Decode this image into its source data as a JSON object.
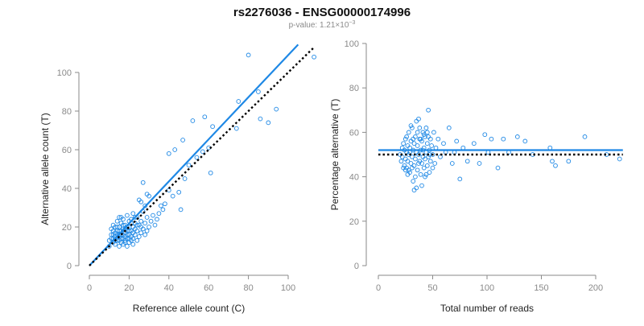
{
  "title": "rs2276036 - ENSG00000174996",
  "subtitle": {
    "prefix": "p-value: 1.21×10",
    "exponent": "−3"
  },
  "colors": {
    "accent": "#1e88e5",
    "reference": "#000000",
    "axis": "#8a8a8a"
  },
  "chart_data": [
    {
      "type": "scatter",
      "xlabel": "Reference allele count (C)",
      "ylabel": "Alternative allele count (T)",
      "xlim": [
        0,
        115
      ],
      "ylim": [
        0,
        100
      ],
      "xticks": [
        0,
        20,
        40,
        60,
        80,
        100
      ],
      "yticks": [
        0,
        20,
        40,
        60,
        80,
        100
      ],
      "fit_line": {
        "slope": 1.09,
        "intercept": 0,
        "x_range": [
          0,
          105
        ],
        "color": "#1e88e5",
        "style": "solid"
      },
      "reference_line": {
        "slope": 1.0,
        "intercept": 0,
        "x_range": [
          0,
          113
        ],
        "color": "#000000",
        "style": "dotted"
      },
      "points": [
        [
          10,
          10
        ],
        [
          10,
          13
        ],
        [
          11,
          16
        ],
        [
          11,
          19
        ],
        [
          12,
          12
        ],
        [
          12,
          14
        ],
        [
          12,
          21
        ],
        [
          13,
          15
        ],
        [
          13,
          17
        ],
        [
          13,
          11
        ],
        [
          14,
          18
        ],
        [
          14,
          23
        ],
        [
          14,
          13
        ],
        [
          15,
          10
        ],
        [
          15,
          16
        ],
        [
          15,
          20
        ],
        [
          15,
          25
        ],
        [
          16,
          12
        ],
        [
          16,
          14
        ],
        [
          16,
          18
        ],
        [
          16,
          22
        ],
        [
          17,
          11
        ],
        [
          17,
          16
        ],
        [
          17,
          19
        ],
        [
          17,
          24
        ],
        [
          18,
          13
        ],
        [
          18,
          15
        ],
        [
          18,
          17
        ],
        [
          18,
          21
        ],
        [
          19,
          10
        ],
        [
          19,
          14
        ],
        [
          19,
          18
        ],
        [
          19,
          26
        ],
        [
          20,
          12
        ],
        [
          20,
          16
        ],
        [
          20,
          20
        ],
        [
          20,
          23
        ],
        [
          21,
          15
        ],
        [
          21,
          18
        ],
        [
          21,
          24
        ],
        [
          22,
          11
        ],
        [
          22,
          14
        ],
        [
          22,
          20
        ],
        [
          22,
          27
        ],
        [
          23,
          16
        ],
        [
          23,
          19
        ],
        [
          23,
          22
        ],
        [
          24,
          13
        ],
        [
          24,
          18
        ],
        [
          24,
          25
        ],
        [
          25,
          15
        ],
        [
          25,
          21
        ],
        [
          25,
          34
        ],
        [
          26,
          17
        ],
        [
          26,
          23
        ],
        [
          26,
          33
        ],
        [
          27,
          19
        ],
        [
          27,
          28
        ],
        [
          27,
          43
        ],
        [
          28,
          16
        ],
        [
          28,
          22
        ],
        [
          28,
          31
        ],
        [
          29,
          18
        ],
        [
          29,
          25
        ],
        [
          29,
          37
        ],
        [
          30,
          20
        ],
        [
          30,
          36
        ],
        [
          31,
          23
        ],
        [
          32,
          26
        ],
        [
          33,
          21
        ],
        [
          34,
          24
        ],
        [
          35,
          27
        ],
        [
          36,
          31
        ],
        [
          37,
          29
        ],
        [
          38,
          32
        ],
        [
          40,
          39
        ],
        [
          40,
          58
        ],
        [
          42,
          36
        ],
        [
          43,
          60
        ],
        [
          45,
          38
        ],
        [
          46,
          29
        ],
        [
          47,
          65
        ],
        [
          48,
          45
        ],
        [
          50,
          52
        ],
        [
          52,
          75
        ],
        [
          54,
          56
        ],
        [
          57,
          59
        ],
        [
          58,
          77
        ],
        [
          60,
          61
        ],
        [
          61,
          48
        ],
        [
          62,
          72
        ],
        [
          74,
          71
        ],
        [
          75,
          85
        ],
        [
          80,
          109
        ],
        [
          85,
          90
        ],
        [
          86,
          76
        ],
        [
          90,
          74
        ],
        [
          94,
          81
        ],
        [
          113,
          108
        ],
        [
          12,
          18
        ],
        [
          13,
          20
        ],
        [
          14,
          16
        ],
        [
          15,
          13
        ],
        [
          16,
          25
        ],
        [
          17,
          21
        ],
        [
          18,
          12
        ],
        [
          19,
          20
        ],
        [
          20,
          18
        ],
        [
          21,
          13
        ],
        [
          11,
          14
        ],
        [
          12,
          16
        ],
        [
          14,
          20
        ],
        [
          15,
          18
        ],
        [
          16,
          16
        ],
        [
          17,
          14
        ],
        [
          18,
          19
        ],
        [
          19,
          16
        ],
        [
          20,
          14
        ],
        [
          23,
          25
        ],
        [
          24,
          21
        ],
        [
          26,
          20
        ],
        [
          21,
          22
        ],
        [
          22,
          17
        ],
        [
          13,
          13
        ],
        [
          15,
          15
        ]
      ]
    },
    {
      "type": "scatter",
      "xlabel": "Total number of reads",
      "ylabel": "Percentage alternative (T)",
      "xlim": [
        0,
        225
      ],
      "ylim": [
        0,
        100
      ],
      "xticks": [
        0,
        50,
        100,
        150,
        200
      ],
      "yticks": [
        0,
        20,
        40,
        60,
        80,
        100
      ],
      "fit_line": {
        "y": 52,
        "x_range": [
          0,
          225
        ],
        "color": "#1e88e5",
        "style": "solid"
      },
      "reference_line": {
        "y": 50,
        "x_range": [
          0,
          225
        ],
        "color": "#000000",
        "style": "dotted"
      },
      "points": [
        [
          20,
          50
        ],
        [
          21,
          47
        ],
        [
          22,
          53
        ],
        [
          22,
          49
        ],
        [
          23,
          55
        ],
        [
          24,
          45
        ],
        [
          24,
          52
        ],
        [
          25,
          48
        ],
        [
          25,
          57
        ],
        [
          26,
          51
        ],
        [
          26,
          44
        ],
        [
          27,
          54
        ],
        [
          27,
          47
        ],
        [
          28,
          60
        ],
        [
          28,
          50
        ],
        [
          29,
          42
        ],
        [
          29,
          53
        ],
        [
          30,
          56
        ],
        [
          30,
          46
        ],
        [
          31,
          49
        ],
        [
          31,
          62
        ],
        [
          32,
          38
        ],
        [
          32,
          52
        ],
        [
          33,
          55
        ],
        [
          33,
          45
        ],
        [
          34,
          48
        ],
        [
          34,
          58
        ],
        [
          35,
          35
        ],
        [
          35,
          51
        ],
        [
          36,
          54
        ],
        [
          36,
          43
        ],
        [
          37,
          66
        ],
        [
          37,
          50
        ],
        [
          38,
          47
        ],
        [
          38,
          57
        ],
        [
          39,
          52
        ],
        [
          39,
          41
        ],
        [
          40,
          56
        ],
        [
          40,
          46
        ],
        [
          41,
          49
        ],
        [
          41,
          60
        ],
        [
          42,
          53
        ],
        [
          42,
          44
        ],
        [
          43,
          58
        ],
        [
          43,
          48
        ],
        [
          44,
          51
        ],
        [
          44,
          62
        ],
        [
          45,
          45
        ],
        [
          45,
          55
        ],
        [
          46,
          49
        ],
        [
          46,
          70
        ],
        [
          47,
          52
        ],
        [
          47,
          42
        ],
        [
          48,
          57
        ],
        [
          48,
          47
        ],
        [
          49,
          54
        ],
        [
          50,
          50
        ],
        [
          50,
          44
        ],
        [
          51,
          60
        ],
        [
          52,
          46
        ],
        [
          53,
          53
        ],
        [
          55,
          57
        ],
        [
          57,
          49
        ],
        [
          60,
          55
        ],
        [
          62,
          51
        ],
        [
          65,
          62
        ],
        [
          68,
          46
        ],
        [
          70,
          51
        ],
        [
          72,
          56
        ],
        [
          75,
          39
        ],
        [
          78,
          53
        ],
        [
          82,
          47
        ],
        [
          88,
          55
        ],
        [
          93,
          46
        ],
        [
          98,
          59
        ],
        [
          101,
          51
        ],
        [
          104,
          57
        ],
        [
          110,
          44
        ],
        [
          115,
          57
        ],
        [
          120,
          51
        ],
        [
          128,
          58
        ],
        [
          135,
          56
        ],
        [
          142,
          50
        ],
        [
          158,
          53
        ],
        [
          160,
          47
        ],
        [
          163,
          45
        ],
        [
          175,
          47
        ],
        [
          190,
          58
        ],
        [
          210,
          50
        ],
        [
          222,
          48
        ],
        [
          23,
          44
        ],
        [
          26,
          58
        ],
        [
          28,
          43
        ],
        [
          30,
          63
        ],
        [
          32,
          57
        ],
        [
          34,
          40
        ],
        [
          36,
          60
        ],
        [
          38,
          62
        ],
        [
          40,
          36
        ],
        [
          42,
          59
        ],
        [
          44,
          41
        ],
        [
          46,
          58
        ],
        [
          33,
          34
        ],
        [
          35,
          65
        ],
        [
          37,
          46
        ],
        [
          39,
          57
        ],
        [
          41,
          52
        ],
        [
          43,
          40
        ],
        [
          45,
          60
        ],
        [
          47,
          50
        ],
        [
          29,
          51
        ],
        [
          31,
          44
        ],
        [
          27,
          41
        ],
        [
          25,
          43
        ]
      ]
    }
  ]
}
